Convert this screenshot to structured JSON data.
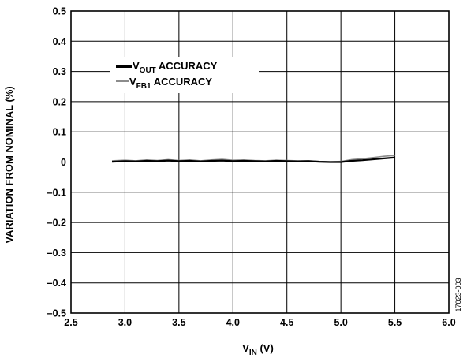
{
  "chart_data": {
    "type": "line",
    "xlabel": {
      "main": "V",
      "sub": "IN",
      "rest": " (V)"
    },
    "ylabel": "VARIATION FROM NOMINAL (%)",
    "xlim": [
      2.5,
      6.0
    ],
    "ylim": [
      -0.5,
      0.5
    ],
    "x_ticks": [
      2.5,
      3.0,
      3.5,
      4.0,
      4.5,
      5.0,
      5.5,
      6.0
    ],
    "x_tick_labels": [
      "2.5",
      "3.0",
      "3.5",
      "4.0",
      "4.5",
      "5.0",
      "5.5",
      "6.0"
    ],
    "y_ticks": [
      0.5,
      0.4,
      0.3,
      0.2,
      0.1,
      0,
      -0.1,
      -0.2,
      -0.3,
      -0.4,
      -0.5
    ],
    "y_tick_labels": [
      "0.5",
      "0.4",
      "0.3",
      "0.2",
      "0.1",
      "0",
      "–0.1",
      "–0.2",
      "–0.3",
      "–0.4",
      "–0.5"
    ],
    "grid": true,
    "legend_position": "top-left",
    "series": [
      {
        "name": {
          "main": "V",
          "sub": "OUT",
          "rest": " ACCURACY"
        },
        "color": "#000000",
        "x": [
          2.88,
          3.0,
          3.1,
          3.2,
          3.3,
          3.4,
          3.5,
          3.6,
          3.7,
          3.8,
          3.9,
          4.0,
          4.1,
          4.2,
          4.3,
          4.4,
          4.5,
          4.6,
          4.7,
          4.8,
          4.9,
          5.0,
          5.1,
          5.2,
          5.3,
          5.4,
          5.5
        ],
        "y": [
          0.001,
          0.003,
          0.002,
          0.004,
          0.003,
          0.005,
          0.003,
          0.004,
          0.002,
          0.004,
          0.005,
          0.003,
          0.004,
          0.003,
          0.002,
          0.004,
          0.003,
          0.002,
          0.003,
          0.001,
          0.0,
          0.0,
          0.004,
          0.006,
          0.009,
          0.012,
          0.015
        ]
      },
      {
        "name": {
          "main": "V",
          "sub": "FB1",
          "rest": " ACCURACY"
        },
        "color": "#8c8c8c",
        "x": [
          2.88,
          3.0,
          3.1,
          3.2,
          3.3,
          3.4,
          3.5,
          3.6,
          3.7,
          3.8,
          3.9,
          4.0,
          4.1,
          4.2,
          4.3,
          4.4,
          4.5,
          4.6,
          4.7,
          4.8,
          4.9,
          5.0,
          5.1,
          5.2,
          5.3,
          5.4,
          5.5
        ],
        "y": [
          0.004,
          0.006,
          0.004,
          0.007,
          0.005,
          0.008,
          0.005,
          0.007,
          0.004,
          0.007,
          0.009,
          0.006,
          0.007,
          0.005,
          0.004,
          0.006,
          0.005,
          0.004,
          0.004,
          0.002,
          0.001,
          0.002,
          0.008,
          0.011,
          0.015,
          0.019,
          0.022
        ]
      }
    ]
  },
  "figure_id": "17023-003"
}
